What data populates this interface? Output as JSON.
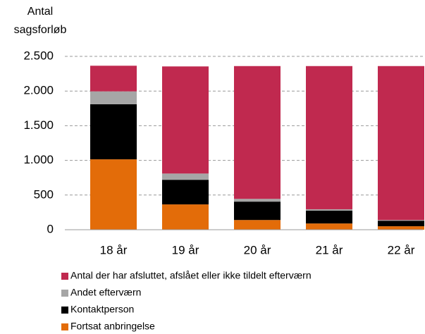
{
  "chart_data": {
    "type": "stacked_bar",
    "y_label": "Antal sagsforløb",
    "categories": [
      "18 år",
      "19 år",
      "20 år",
      "21 år",
      "22 år"
    ],
    "series": [
      {
        "name": "Antal der har afsluttet, afslået eller  ikke tildelt efterværn",
        "color": "#c0294f",
        "values": [
          370,
          1545,
          1915,
          2065,
          2220
        ]
      },
      {
        "name": "Andet efterværn",
        "color": "#a6a6a6",
        "values": [
          185,
          90,
          40,
          20,
          10
        ]
      },
      {
        "name": "Kontaktperson",
        "color": "#000000",
        "values": [
          795,
          355,
          265,
          185,
          80
        ]
      },
      {
        "name": "Fortsat anbringelse",
        "color": "#e36c09",
        "values": [
          1015,
          365,
          140,
          90,
          50
        ]
      }
    ],
    "ylim": [
      0,
      2500
    ],
    "yticks": [
      0,
      500,
      {
        "value": 1000,
        "label": "1.000"
      },
      {
        "value": 1500,
        "label": "1.500"
      },
      {
        "value": 2000,
        "label": "2.000"
      },
      {
        "value": 2500,
        "label": "2.500"
      }
    ],
    "grid": true,
    "legend": "bottom"
  }
}
